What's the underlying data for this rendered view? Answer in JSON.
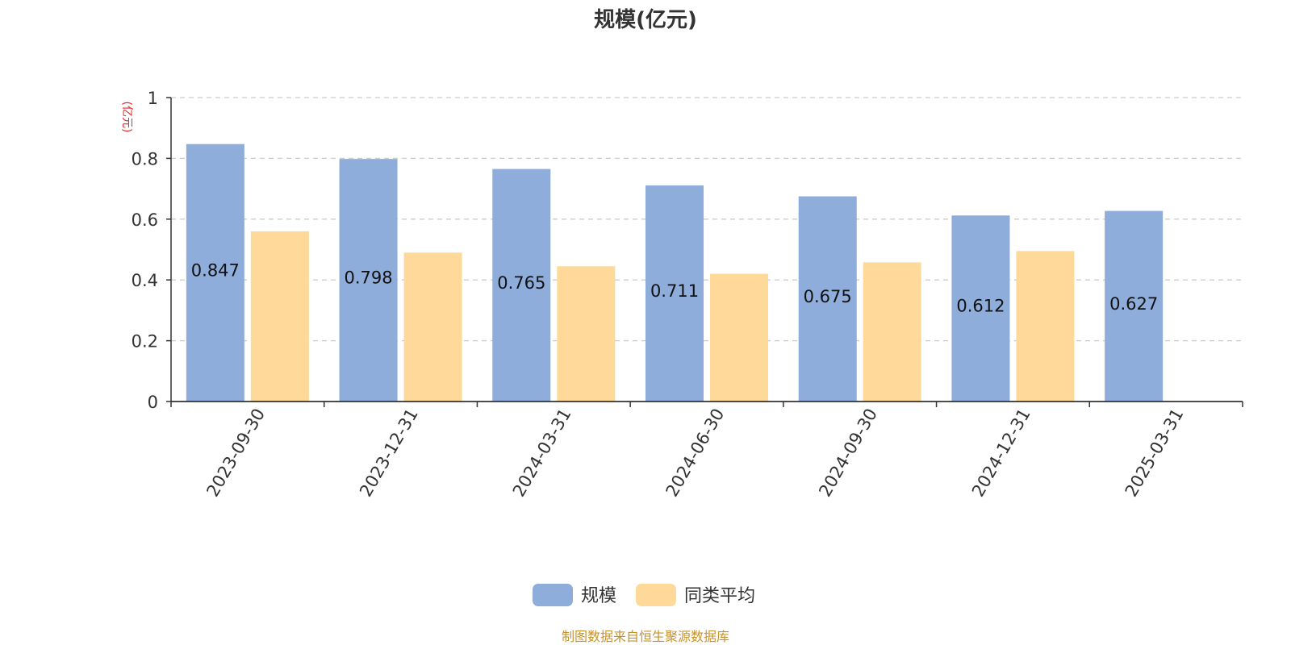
{
  "chart_data": {
    "type": "bar",
    "title": "规模(亿元)",
    "ylabel": "(亿元)",
    "xlabel": "",
    "categories": [
      "2023-09-30",
      "2023-12-31",
      "2024-03-31",
      "2024-06-30",
      "2024-09-30",
      "2024-12-31",
      "2025-03-31"
    ],
    "series": [
      {
        "name": "规模",
        "values": [
          0.847,
          0.798,
          0.765,
          0.711,
          0.675,
          0.612,
          0.627
        ],
        "color": "#8eaddb",
        "data_labels": true
      },
      {
        "name": "同类平均",
        "values": [
          0.56,
          0.49,
          0.445,
          0.42,
          0.458,
          0.495,
          null
        ],
        "color": "#fed999",
        "data_labels": false
      }
    ],
    "ylim": [
      0,
      1
    ],
    "yticks": [
      0,
      0.2,
      0.4,
      0.6,
      0.8,
      1
    ],
    "ytick_labels": [
      "0",
      "0.2",
      "0.4",
      "0.6",
      "0.8",
      "1"
    ],
    "grid": "dashed horizontal",
    "legend_position": "bottom-center",
    "x_tick_rotation": "diagonal"
  },
  "source_note": "制图数据来自恒生聚源数据库",
  "colors": {
    "title": "#333333",
    "unit_label": "#e8262b",
    "axis": "#333333",
    "grid": "#cccccc",
    "source_note": "#c8922b"
  }
}
